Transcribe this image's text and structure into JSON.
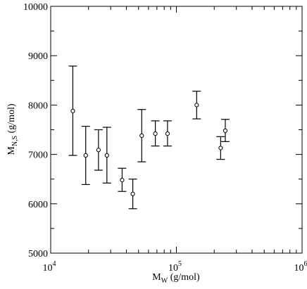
{
  "chart_data": {
    "type": "scatter",
    "xlabel": {
      "main": "M",
      "sub": "W",
      "rest": " (g/mol)"
    },
    "ylabel": {
      "main": "M",
      "sub": "N,S",
      "rest": " (g/mol)"
    },
    "xscale": "log",
    "xlim": [
      10000,
      1000000
    ],
    "ylim": [
      5000,
      10000
    ],
    "x_ticks": [
      {
        "value": 10000,
        "base": "10",
        "exp": "4"
      },
      {
        "value": 100000,
        "base": "10",
        "exp": "5"
      },
      {
        "value": 1000000,
        "base": "10",
        "exp": "6"
      }
    ],
    "y_ticks": [
      {
        "value": 5000,
        "label": "5000"
      },
      {
        "value": 6000,
        "label": "6000"
      },
      {
        "value": 7000,
        "label": "7000"
      },
      {
        "value": 8000,
        "label": "8000"
      },
      {
        "value": 9000,
        "label": "9000"
      },
      {
        "value": 10000,
        "label": "10000"
      }
    ],
    "grid": false,
    "legend": "none",
    "marker": "open-circle",
    "series": [
      {
        "points": [
          {
            "x": 15000,
            "y": 7880,
            "ylow": 6980,
            "yhigh": 8790
          },
          {
            "x": 19000,
            "y": 6980,
            "ylow": 6390,
            "yhigh": 7570
          },
          {
            "x": 24000,
            "y": 7090,
            "ylow": 6680,
            "yhigh": 7500
          },
          {
            "x": 28000,
            "y": 6980,
            "ylow": 6420,
            "yhigh": 7550
          },
          {
            "x": 37000,
            "y": 6480,
            "ylow": 6250,
            "yhigh": 6720
          },
          {
            "x": 45000,
            "y": 6200,
            "ylow": 5900,
            "yhigh": 6500
          },
          {
            "x": 53000,
            "y": 7380,
            "ylow": 6850,
            "yhigh": 7910
          },
          {
            "x": 68000,
            "y": 7420,
            "ylow": 7170,
            "yhigh": 7680
          },
          {
            "x": 85000,
            "y": 7420,
            "ylow": 7170,
            "yhigh": 7680
          },
          {
            "x": 145000,
            "y": 8000,
            "ylow": 7720,
            "yhigh": 8280
          },
          {
            "x": 225000,
            "y": 7130,
            "ylow": 6900,
            "yhigh": 7360
          },
          {
            "x": 245000,
            "y": 7480,
            "ylow": 7260,
            "yhigh": 7710
          }
        ]
      }
    ]
  }
}
